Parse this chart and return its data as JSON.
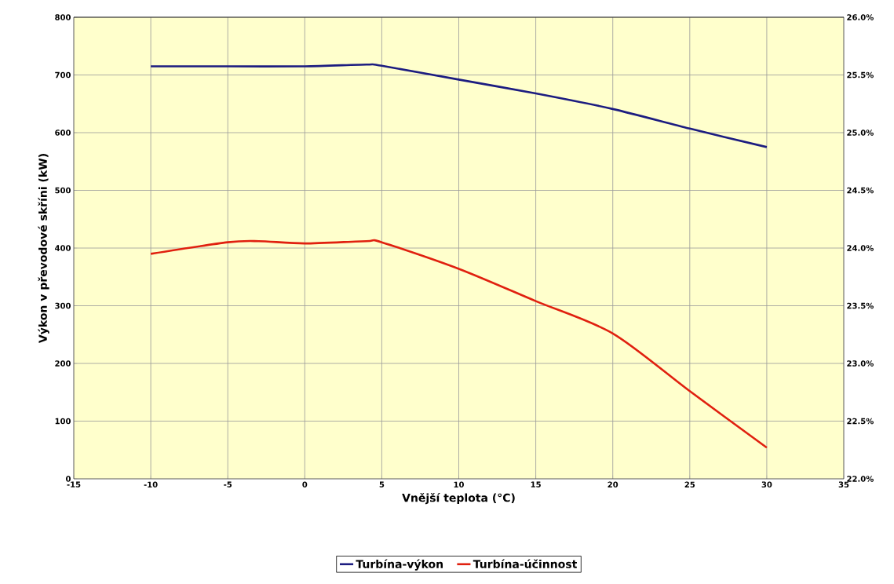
{
  "chart_data": {
    "type": "line",
    "xlabel": "Vnější teplota (°C)",
    "ylabel": "Výkon v převodové skříni (kW)",
    "xlim": [
      -15,
      35
    ],
    "xticks": [
      -15,
      -10,
      -5,
      0,
      5,
      10,
      15,
      20,
      25,
      30,
      35
    ],
    "ylim": [
      0,
      800
    ],
    "yticks": [
      0,
      100,
      200,
      300,
      400,
      500,
      600,
      700,
      800
    ],
    "y2lim": [
      22,
      26
    ],
    "y2ticks": [
      {
        "value": 22,
        "label": "22.0%"
      },
      {
        "value": 22.5,
        "label": "22.5%"
      },
      {
        "value": 23,
        "label": "23.0%"
      },
      {
        "value": 23.5,
        "label": "23.5%"
      },
      {
        "value": 24,
        "label": "24.0%"
      },
      {
        "value": 24.5,
        "label": "24.5%"
      },
      {
        "value": 25,
        "label": "25.0%"
      },
      {
        "value": 25.5,
        "label": "25.5%"
      },
      {
        "value": 26,
        "label": "26.0%"
      }
    ],
    "grid": true,
    "legend": "bottom",
    "marker": "none",
    "line_style": "solid",
    "series": [
      {
        "name": "Turbína-výkon",
        "color": "#1c1c80",
        "x": [
          -10,
          -5,
          0,
          4,
          5,
          10,
          15,
          20,
          25,
          30
        ],
        "values": [
          715,
          715,
          715,
          718,
          716,
          692,
          668,
          641,
          607,
          575
        ]
      },
      {
        "name": "Turbína-účinnost",
        "color": "#e0200f",
        "axis": "y2",
        "x": [
          -10,
          -5,
          -3,
          0,
          4,
          5,
          10,
          15,
          20,
          25,
          30
        ],
        "values": [
          23.95,
          24.05,
          24.06,
          24.04,
          24.06,
          24.05,
          23.82,
          23.54,
          23.26,
          22.76,
          22.27
        ]
      }
    ]
  }
}
